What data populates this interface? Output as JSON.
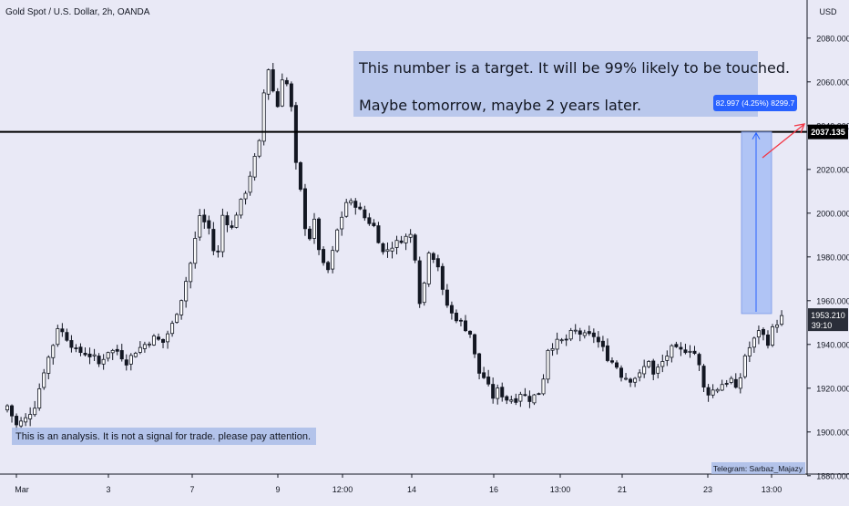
{
  "chart_data": {
    "type": "candlestick",
    "title": "Gold Spot / U.S. Dollar, 2h, OANDA",
    "currency": "USD",
    "ylim": [
      1872,
      2092
    ],
    "y_ticks": [
      "1880.000",
      "1900.000",
      "1920.000",
      "1940.000",
      "1960.000",
      "1980.000",
      "2000.000",
      "2020.000",
      "2040.000",
      "2060.000",
      "2080.000"
    ],
    "x_ticks": [
      "Mar",
      "3",
      "7",
      "9",
      "12:00",
      "14",
      "16",
      "13:00",
      "21",
      "23",
      "13:00"
    ],
    "grid": false,
    "price_badge": {
      "price": "1953.210",
      "countdown": "39:10"
    },
    "horizontal_line": {
      "price": 2037.135,
      "label": "2037.135"
    },
    "measure_label": "82.997 (4.25%) 8299.7",
    "measure_range": [
      1954.1,
      2037.1
    ],
    "annotation_main": {
      "line1": "This number is a target. It will be 99% likely to be touched.",
      "line2": "Maybe tomorrow, maybe 2 years later."
    },
    "annotation_disclaimer": "This is an analysis. It is not a signal for trade. please pay attention.",
    "watermark": "Telegram: Sarbaz_Majazy",
    "colors": {
      "up": "#ffffff",
      "down": "#131722",
      "wick": "#131722",
      "box": "#a9bce8",
      "measure": "#2962ff",
      "arrow": "#f23645",
      "bg": "#e9e9f6"
    },
    "anchors": [
      [
        0,
        1912
      ],
      [
        2,
        1903
      ],
      [
        4,
        1906
      ],
      [
        6,
        1912
      ],
      [
        8,
        1928
      ],
      [
        10,
        1940
      ],
      [
        11,
        1948
      ],
      [
        13,
        1943
      ],
      [
        15,
        1937
      ],
      [
        17,
        1936
      ],
      [
        19,
        1934
      ],
      [
        20,
        1931
      ],
      [
        22,
        1937
      ],
      [
        24,
        1937
      ],
      [
        26,
        1932
      ],
      [
        28,
        1937
      ],
      [
        30,
        1940
      ],
      [
        32,
        1943
      ],
      [
        34,
        1941
      ],
      [
        36,
        1949
      ],
      [
        38,
        1961
      ],
      [
        40,
        1977
      ],
      [
        42,
        1999
      ],
      [
        44,
        1993
      ],
      [
        45,
        1983
      ],
      [
        46,
        1982
      ],
      [
        47,
        1999
      ],
      [
        49,
        1993
      ],
      [
        50,
        2000
      ],
      [
        52,
        2010
      ],
      [
        54,
        2025
      ],
      [
        55,
        2032
      ],
      [
        56,
        2055
      ],
      [
        57,
        2066
      ],
      [
        58,
        2056
      ],
      [
        59,
        2049
      ],
      [
        60,
        2062
      ],
      [
        61,
        2059
      ],
      [
        62,
        2048
      ],
      [
        63,
        2022
      ],
      [
        64,
        2010
      ],
      [
        65,
        1994
      ],
      [
        66,
        1989
      ],
      [
        67,
        1996
      ],
      [
        68,
        1984
      ],
      [
        69,
        1976
      ],
      [
        70,
        1974
      ],
      [
        71,
        1982
      ],
      [
        72,
        1992
      ],
      [
        74,
        2005
      ],
      [
        76,
        2004
      ],
      [
        78,
        1998
      ],
      [
        80,
        1994
      ],
      [
        82,
        1982
      ],
      [
        84,
        1985
      ],
      [
        86,
        1988
      ],
      [
        88,
        1990
      ],
      [
        89,
        1980
      ],
      [
        90,
        1960
      ],
      [
        91,
        1968
      ],
      [
        92,
        1983
      ],
      [
        93,
        1980
      ],
      [
        94,
        1976
      ],
      [
        95,
        1964
      ],
      [
        96,
        1958
      ],
      [
        97,
        1954
      ],
      [
        99,
        1950
      ],
      [
        101,
        1945
      ],
      [
        102,
        1935
      ],
      [
        103,
        1927
      ],
      [
        104,
        1925
      ],
      [
        106,
        1916
      ],
      [
        107,
        1919
      ],
      [
        109,
        1915
      ],
      [
        111,
        1915
      ],
      [
        112,
        1918
      ],
      [
        114,
        1915
      ],
      [
        116,
        1918
      ],
      [
        117,
        1925
      ],
      [
        118,
        1938
      ],
      [
        120,
        1941
      ],
      [
        122,
        1942
      ],
      [
        123,
        1945
      ],
      [
        124,
        1946
      ],
      [
        126,
        1944
      ],
      [
        128,
        1944
      ],
      [
        130,
        1938
      ],
      [
        131,
        1934
      ],
      [
        133,
        1930
      ],
      [
        134,
        1926
      ],
      [
        136,
        1924
      ],
      [
        138,
        1926
      ],
      [
        140,
        1933
      ],
      [
        141,
        1926
      ],
      [
        143,
        1932
      ],
      [
        145,
        1938
      ],
      [
        147,
        1937
      ],
      [
        149,
        1938
      ],
      [
        150,
        1936
      ],
      [
        151,
        1930
      ],
      [
        152,
        1920
      ],
      [
        153,
        1918
      ],
      [
        155,
        1920
      ],
      [
        156,
        1922
      ],
      [
        158,
        1924
      ],
      [
        159,
        1919
      ],
      [
        160,
        1925
      ],
      [
        161,
        1935
      ],
      [
        163,
        1942
      ],
      [
        164,
        1947
      ],
      [
        166,
        1941
      ],
      [
        167,
        1947
      ],
      [
        168,
        1950
      ],
      [
        169,
        1953.2
      ]
    ]
  }
}
